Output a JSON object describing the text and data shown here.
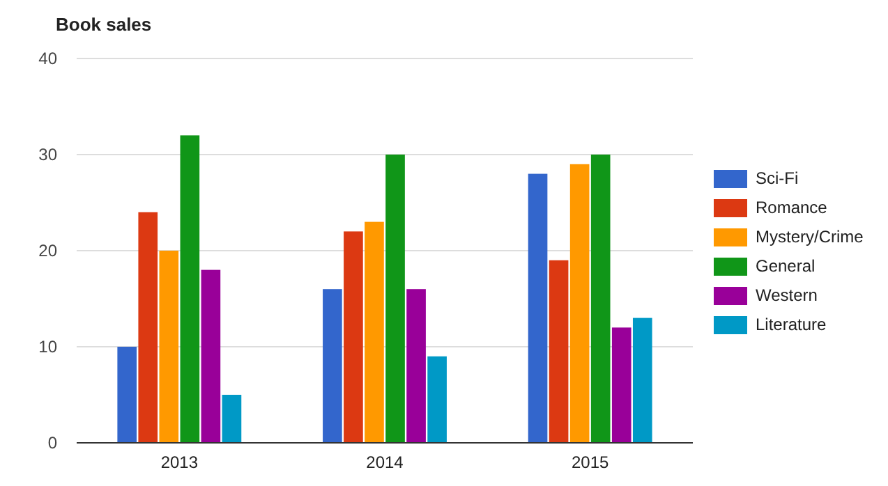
{
  "chart_data": {
    "type": "bar",
    "title": "Book sales",
    "categories": [
      "2013",
      "2014",
      "2015"
    ],
    "series": [
      {
        "name": "Sci-Fi",
        "color": "#3366cc",
        "values": [
          10,
          16,
          28
        ]
      },
      {
        "name": "Romance",
        "color": "#dc3912",
        "values": [
          24,
          22,
          19
        ]
      },
      {
        "name": "Mystery/Crime",
        "color": "#ff9900",
        "values": [
          20,
          23,
          29
        ]
      },
      {
        "name": "General",
        "color": "#109618",
        "values": [
          32,
          30,
          30
        ]
      },
      {
        "name": "Western",
        "color": "#990099",
        "values": [
          18,
          16,
          12
        ]
      },
      {
        "name": "Literature",
        "color": "#0099c6",
        "values": [
          5,
          9,
          13
        ]
      }
    ],
    "ylim": [
      0,
      40
    ],
    "yticks": [
      0,
      10,
      20,
      30,
      40
    ],
    "grid": "y",
    "legend": "right"
  }
}
